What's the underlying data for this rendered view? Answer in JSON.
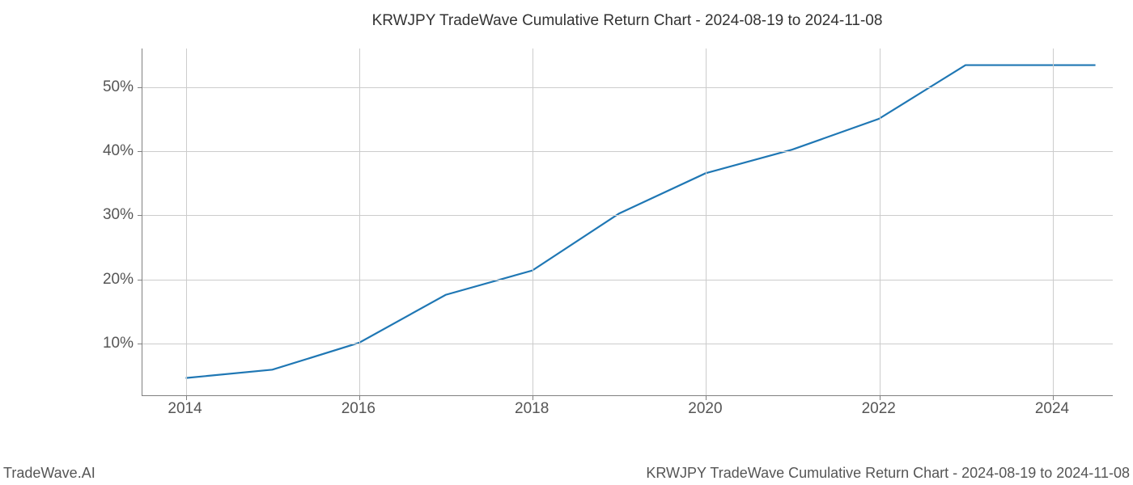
{
  "chart": {
    "type": "line",
    "title": "KRWJPY TradeWave Cumulative Return Chart - 2024-08-19 to 2024-11-08",
    "x_values": [
      2014,
      2015,
      2016,
      2017,
      2018,
      2019,
      2020,
      2021,
      2022,
      2023,
      2024,
      2024.5
    ],
    "y_values": [
      4.5,
      5.8,
      10.0,
      17.5,
      21.3,
      30.2,
      36.5,
      40.2,
      45.0,
      53.4,
      53.4,
      53.4
    ],
    "line_color": "#1f77b4",
    "line_width": 2.2,
    "xlim": [
      2013.5,
      2024.7
    ],
    "ylim": [
      1.8,
      56
    ],
    "x_ticks": [
      2014,
      2016,
      2018,
      2020,
      2022,
      2024
    ],
    "x_tick_labels": [
      "2014",
      "2016",
      "2018",
      "2020",
      "2022",
      "2024"
    ],
    "y_ticks": [
      10,
      20,
      30,
      40,
      50
    ],
    "y_tick_labels": [
      "10%",
      "20%",
      "30%",
      "40%",
      "50%"
    ],
    "grid_color": "#cccccc",
    "axis_color": "#808080",
    "tick_label_color": "#555555",
    "tick_label_fontsize": 19,
    "title_fontsize": 19,
    "background_color": "#ffffff"
  },
  "footer": {
    "left": "TradeWave.AI",
    "right": "KRWJPY TradeWave Cumulative Return Chart - 2024-08-19 to 2024-11-08"
  }
}
